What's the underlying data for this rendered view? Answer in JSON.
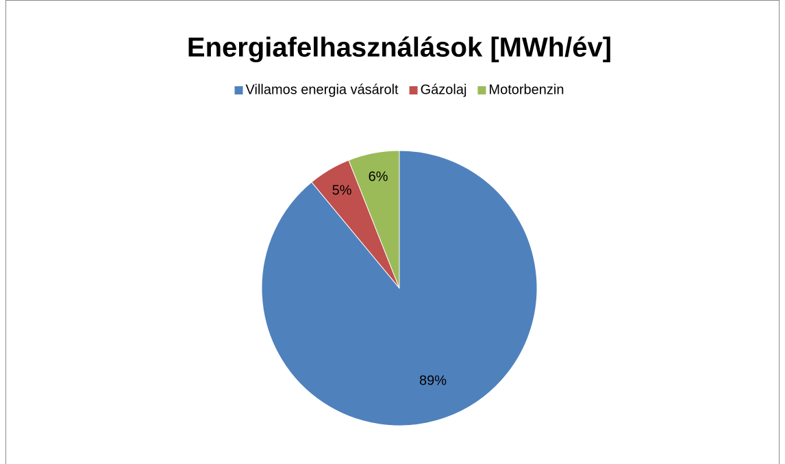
{
  "chart_data": {
    "type": "pie",
    "title": "Energiafelhasználások [MWh/év]",
    "categories": [
      "Villamos energia vásárolt",
      "Gázolaj",
      "Motorbenzin"
    ],
    "values": [
      89,
      5,
      6
    ],
    "value_labels": [
      "89%",
      "5%",
      "6%"
    ],
    "colors": [
      "#4f81bd",
      "#c0504d",
      "#9bbb59"
    ],
    "legend": "top"
  }
}
